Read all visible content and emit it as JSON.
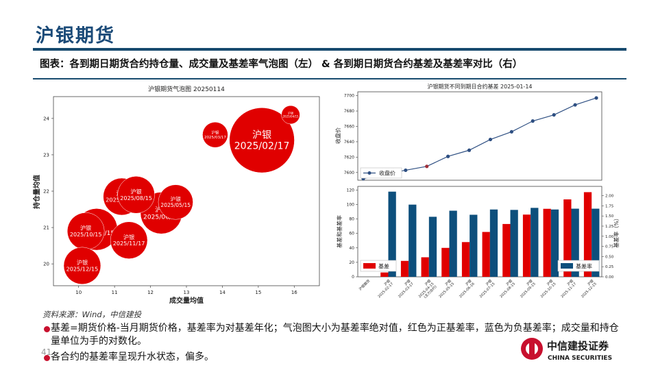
{
  "header": {
    "title": "沪银期货",
    "subtitle": "图表：各到期日期货合约持仓量、成交量及基差率气泡图（左） & 各到期日期货合约基差及基差率对比（右）"
  },
  "footer": {
    "source": "资料来源：Wind，中信建投",
    "notes": [
      "基差=期货价格-当月期货价格，基差率为对基差年化；气泡图大小为基差率绝对值，红色为正基差率，蓝色为负基差率；成交量和持仓量单位为手的对数化。",
      "各合约的基差率呈现升水状态，偏多。"
    ],
    "page_number": "41",
    "logo_cn": "中信建投证券",
    "logo_en": "CHINA SECURITIES"
  },
  "colors": {
    "red": "#e00000",
    "navy": "#0d4f7c",
    "brand": "#1a4a78",
    "line": "#2e4f82"
  },
  "chart_data": [
    {
      "type": "scatter",
      "title": "沪银期货气泡图 20250114",
      "xlabel": "成交量均值",
      "ylabel": "持仓量均值",
      "xlim": [
        9.3,
        16.7
      ],
      "ylim": [
        19.4,
        24.6
      ],
      "xticks": [
        10,
        11,
        12,
        13,
        14,
        15,
        16
      ],
      "yticks": [
        20,
        21,
        22,
        23,
        24
      ],
      "points": [
        {
          "label": "沪银\n2025/02/17",
          "x": 15.1,
          "y": 23.4,
          "size": 2.2
        },
        {
          "label": "沪银\n2025/03/17",
          "x": 13.8,
          "y": 23.55,
          "size": 0.5
        },
        {
          "label": "沪银\n2025/04/15",
          "x": 15.9,
          "y": 24.1,
          "size": 0.2
        },
        {
          "label": "沪银\n2025/05/15",
          "x": 12.7,
          "y": 21.7,
          "size": 0.9
        },
        {
          "label": "沪银\n2025/06/16",
          "x": 12.3,
          "y": 21.4,
          "size": 1.2
        },
        {
          "label": "沪银\n2025/07/15",
          "x": 11.2,
          "y": 21.85,
          "size": 1.0
        },
        {
          "label": "沪银\n2025/08/15",
          "x": 11.6,
          "y": 21.9,
          "size": 1.0
        },
        {
          "label": "沪银\n2025/09/15",
          "x": 10.5,
          "y": 20.95,
          "size": 1.2
        },
        {
          "label": "沪银\n2025/10/15",
          "x": 10.2,
          "y": 20.9,
          "size": 1.0
        },
        {
          "label": "沪银\n2025/11/17",
          "x": 11.4,
          "y": 20.65,
          "size": 1.0
        },
        {
          "label": "沪银\n2025/12/15",
          "x": 10.1,
          "y": 19.95,
          "size": 1.0
        }
      ]
    },
    {
      "type": "line",
      "title": "沪银期货不同到期日合约基差  2025-01-14",
      "ylabel": "收盘价",
      "legend": "收盘价",
      "ylim": [
        7590,
        7705
      ],
      "yticks": [
        7600,
        7620,
        7640,
        7660,
        7680,
        7700
      ],
      "values": [
        7592,
        7598,
        7603,
        7608,
        7621,
        7629,
        7643,
        7653,
        7667,
        7675,
        7688,
        7697
      ]
    },
    {
      "type": "bar",
      "categories": [
        "沪银期货",
        "沪银\n2025-02-17",
        "沪银\n2025-03-17",
        "沪银\n2025-04-15\n(主力合约)",
        "沪银\n2025-05-15",
        "沪银\n2025-06-16",
        "沪银\n2025-07-15",
        "沪银\n2025-08-15",
        "沪银\n2025-09-15",
        "沪银\n2025-10-15",
        "沪银\n2025-11-17",
        "沪银\n2025-12-15"
      ],
      "ylabel": "基差和基差率",
      "y2label": "基差率（%）",
      "ylim": [
        0,
        125
      ],
      "yticks": [
        0,
        20,
        40,
        60,
        80,
        100,
        120
      ],
      "y2lim": [
        0,
        2.23
      ],
      "y2ticks": [
        0.0,
        0.25,
        0.5,
        0.75,
        1.0,
        1.25,
        1.5,
        1.75,
        2.0
      ],
      "series": [
        {
          "name": "基差",
          "axis": "left",
          "values": [
            0,
            6,
            22,
            27,
            40,
            48,
            62,
            73,
            86,
            94,
            107,
            117
          ]
        },
        {
          "name": "基差率",
          "axis": "right",
          "values": [
            0,
            2.1,
            1.78,
            1.48,
            1.63,
            1.53,
            1.66,
            1.65,
            1.7,
            1.66,
            1.68,
            1.68
          ]
        }
      ]
    }
  ]
}
